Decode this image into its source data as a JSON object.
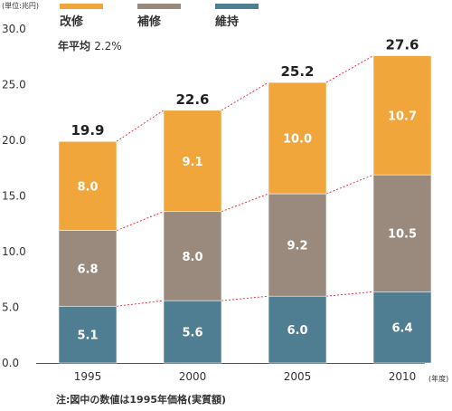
{
  "unit_label": "(単位:兆円)",
  "annotation": {
    "prefix": "年平均",
    "value": "2.2%"
  },
  "footnote": "注:図中の数値は1995年価格(実質額)",
  "x_unit": "(年度)",
  "chart_data": {
    "type": "bar",
    "stacked": true,
    "categories": [
      "1995",
      "2000",
      "2005",
      "2010"
    ],
    "series": [
      {
        "name": "維持",
        "color": "#4f7d91",
        "values": [
          5.1,
          5.6,
          6.0,
          6.4
        ]
      },
      {
        "name": "補修",
        "color": "#9a8a7d",
        "values": [
          6.8,
          8.0,
          9.2,
          10.5
        ]
      },
      {
        "name": "改修",
        "color": "#f0a63b",
        "values": [
          8.0,
          9.1,
          10.0,
          10.7
        ]
      }
    ],
    "totals": [
      19.9,
      22.6,
      25.2,
      27.6
    ],
    "legend_order": [
      "改修",
      "補修",
      "維持"
    ],
    "ylim": [
      0,
      30
    ],
    "yticks": [
      "0.0",
      "5.0",
      "10.0",
      "15.0",
      "20.0",
      "25.0",
      "30.0"
    ],
    "grid": false,
    "connector_color": "#e0203a"
  }
}
